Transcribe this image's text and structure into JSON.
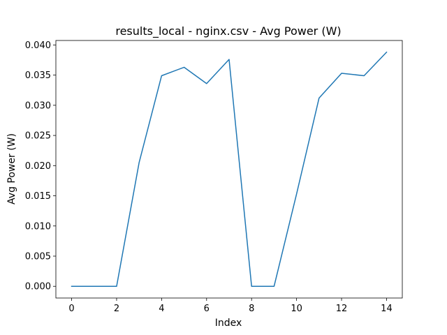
{
  "chart_data": {
    "type": "line",
    "title": "results_local - nginx.csv - Avg Power (W)",
    "xlabel": "Index",
    "ylabel": "Avg Power (W)",
    "xlim": [
      -0.7,
      14.7
    ],
    "ylim": [
      -0.00194,
      0.04074
    ],
    "x_ticks": [
      0,
      2,
      4,
      6,
      8,
      10,
      12,
      14
    ],
    "x_tick_labels": [
      "0",
      "2",
      "4",
      "6",
      "8",
      "10",
      "12",
      "14"
    ],
    "y_ticks": [
      0,
      0.005,
      0.01,
      0.015,
      0.02,
      0.025,
      0.03,
      0.035,
      0.04
    ],
    "y_tick_labels": [
      "0.000",
      "0.005",
      "0.010",
      "0.015",
      "0.020",
      "0.025",
      "0.030",
      "0.035",
      "0.040"
    ],
    "grid": false,
    "series": [
      {
        "color": "#1f77b4",
        "x": [
          0,
          1,
          2,
          3,
          4,
          5,
          6,
          7,
          8,
          9,
          10,
          11,
          12,
          13,
          14
        ],
        "values": [
          0.0,
          0.0,
          0.0,
          0.0205,
          0.0349,
          0.0363,
          0.0336,
          0.0376,
          0.0,
          0.0,
          0.0153,
          0.0312,
          0.0353,
          0.0349,
          0.0388
        ]
      }
    ]
  }
}
